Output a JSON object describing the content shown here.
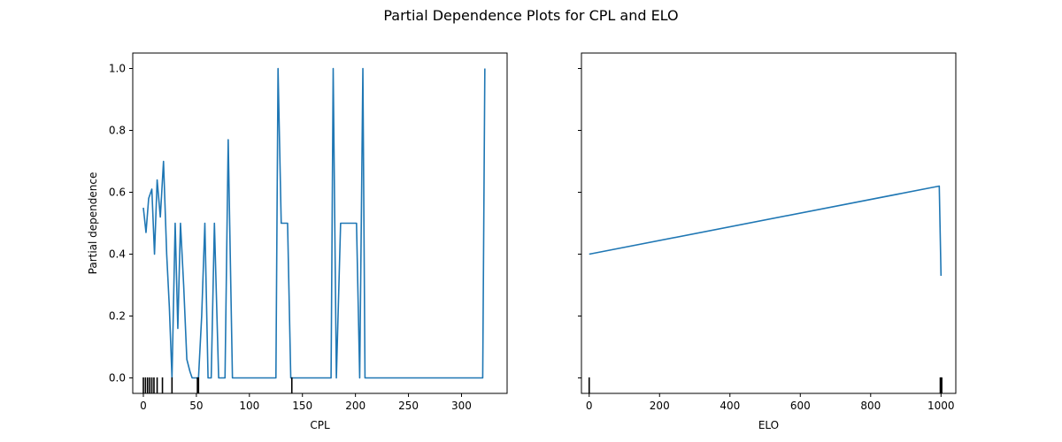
{
  "chart_data": [
    {
      "type": "line",
      "title": "Partial Dependence Plots for CPL and ELO",
      "xlabel": "CPL",
      "ylabel": "Partial dependence",
      "xlim": [
        -10,
        343
      ],
      "ylim": [
        -0.05,
        1.05
      ],
      "xticks": [
        0,
        50,
        100,
        150,
        200,
        250,
        300
      ],
      "yticks": [
        0.0,
        0.2,
        0.4,
        0.6,
        0.8,
        1.0
      ],
      "ytick_labels": [
        "0.0",
        "0.2",
        "0.4",
        "0.6",
        "0.8",
        "1.0"
      ],
      "line_color": "#1f77b4",
      "series": [
        {
          "x": [
            0,
            2.5,
            5,
            8,
            10.5,
            13,
            16,
            19,
            22,
            24.5,
            27,
            30,
            32.5,
            35,
            38,
            41,
            44,
            46,
            49,
            52,
            55,
            58,
            61,
            64,
            67,
            71,
            74,
            77,
            80,
            84,
            87,
            90,
            125,
            127,
            130,
            136,
            139,
            142,
            177,
            179,
            182,
            186,
            201,
            204,
            207,
            209,
            212,
            320,
            322
          ],
          "y": [
            0.55,
            0.47,
            0.58,
            0.61,
            0.4,
            0.64,
            0.52,
            0.7,
            0.4,
            0.23,
            0.0,
            0.5,
            0.16,
            0.5,
            0.3,
            0.06,
            0.02,
            0.0,
            0.0,
            0.0,
            0.2,
            0.5,
            0.0,
            0.0,
            0.5,
            0.0,
            0.0,
            0.0,
            0.77,
            0.0,
            0.0,
            0.0,
            0.0,
            1.0,
            0.5,
            0.5,
            0.0,
            0.0,
            0.0,
            1.0,
            0.0,
            0.5,
            0.5,
            0.0,
            1.0,
            0.0,
            0.0,
            0.0,
            1.0
          ]
        }
      ],
      "rug": [
        0,
        2,
        4,
        6,
        8,
        10,
        13,
        18,
        27,
        51,
        52,
        140
      ]
    },
    {
      "type": "line",
      "xlabel": "ELO",
      "ylabel": "",
      "xlim": [
        -22,
        1042
      ],
      "ylim": [
        -0.05,
        1.05
      ],
      "xticks": [
        0,
        200,
        400,
        600,
        800,
        1000
      ],
      "yticks": [
        0.0,
        0.2,
        0.4,
        0.6,
        0.8,
        1.0
      ],
      "line_color": "#1f77b4",
      "series": [
        {
          "x": [
            0,
            995,
            1000
          ],
          "y": [
            0.4,
            0.62,
            0.33
          ]
        }
      ],
      "rug": [
        0,
        998,
        1000,
        1002
      ]
    }
  ]
}
